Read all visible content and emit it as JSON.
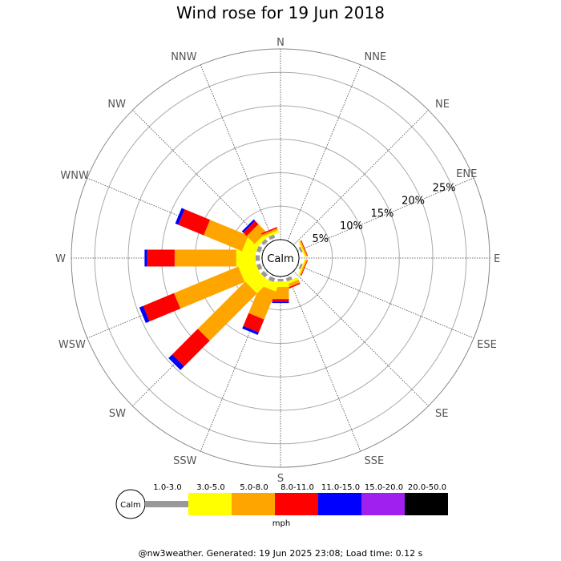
{
  "chart_data": {
    "type": "windrose",
    "title": "Wind rose for 19 Jun 2018",
    "directions": [
      "N",
      "NNE",
      "NE",
      "ENE",
      "E",
      "ESE",
      "SE",
      "SSE",
      "S",
      "SSW",
      "SW",
      "WSW",
      "W",
      "WNW",
      "NW",
      "NNW"
    ],
    "radial_ticks": [
      "5%",
      "10%",
      "15%",
      "20%",
      "25%"
    ],
    "radial_tick_values": [
      5,
      10,
      15,
      20,
      25
    ],
    "radial_max": 28.5,
    "calm_label": "Calm",
    "calm_percent": 3,
    "legend_unit": "mph",
    "speed_bins": [
      {
        "label": "1.0-3.0",
        "color": "#999999"
      },
      {
        "label": "3.0-5.0",
        "color": "#ffff00"
      },
      {
        "label": "5.0-8.0",
        "color": "#ffa500"
      },
      {
        "label": "8.0-11.0",
        "color": "#ff0000"
      },
      {
        "label": "11.0-15.0",
        "color": "#0000ff"
      },
      {
        "label": "15.0-20.0",
        "color": "#a020f0"
      },
      {
        "label": "20.0-50.0",
        "color": "#000000"
      }
    ],
    "series": [
      {
        "direction": "N",
        "values": [
          0,
          0,
          0,
          0,
          0,
          0,
          0
        ]
      },
      {
        "direction": "NNE",
        "values": [
          0,
          0,
          0,
          0,
          0,
          0,
          0
        ]
      },
      {
        "direction": "NE",
        "values": [
          0,
          0,
          0,
          0,
          0,
          0,
          0
        ]
      },
      {
        "direction": "ENE",
        "values": [
          0.3,
          0.2,
          0.2,
          0.1,
          0,
          0,
          0
        ]
      },
      {
        "direction": "E",
        "values": [
          0,
          0,
          0,
          0,
          0,
          0,
          0
        ]
      },
      {
        "direction": "ESE",
        "values": [
          0.3,
          0.2,
          0.2,
          0.1,
          0,
          0,
          0
        ]
      },
      {
        "direction": "SE",
        "values": [
          0,
          0,
          0,
          0,
          0,
          0,
          0
        ]
      },
      {
        "direction": "SSE",
        "values": [
          0.5,
          0.4,
          0.5,
          0.2,
          0,
          0,
          0
        ]
      },
      {
        "direction": "S",
        "values": [
          0.4,
          0.8,
          1.8,
          0.4,
          0.2,
          0,
          0
        ]
      },
      {
        "direction": "SSW",
        "values": [
          0.6,
          1.2,
          4.5,
          2.1,
          0.4,
          0,
          0
        ]
      },
      {
        "direction": "SW",
        "values": [
          0.6,
          2.5,
          10.0,
          5.4,
          0.8,
          0,
          0
        ]
      },
      {
        "direction": "WSW",
        "values": [
          0.6,
          2.6,
          10.4,
          5.0,
          0.6,
          0,
          0
        ]
      },
      {
        "direction": "W",
        "values": [
          0.6,
          2.9,
          9.2,
          4.1,
          0.4,
          0,
          0
        ]
      },
      {
        "direction": "WNW",
        "values": [
          0.6,
          2.0,
          6.2,
          4.1,
          0.5,
          0,
          0
        ]
      },
      {
        "direction": "NW",
        "values": [
          0.5,
          0.6,
          1.7,
          0.7,
          0.3,
          0,
          0
        ]
      },
      {
        "direction": "NNW",
        "values": [
          0.5,
          0.4,
          0.3,
          0.2,
          0,
          0,
          0
        ]
      }
    ]
  },
  "footer": "@nw3weather. Generated: 19 Jun 2025 23:08; Load time: 0.12 s"
}
